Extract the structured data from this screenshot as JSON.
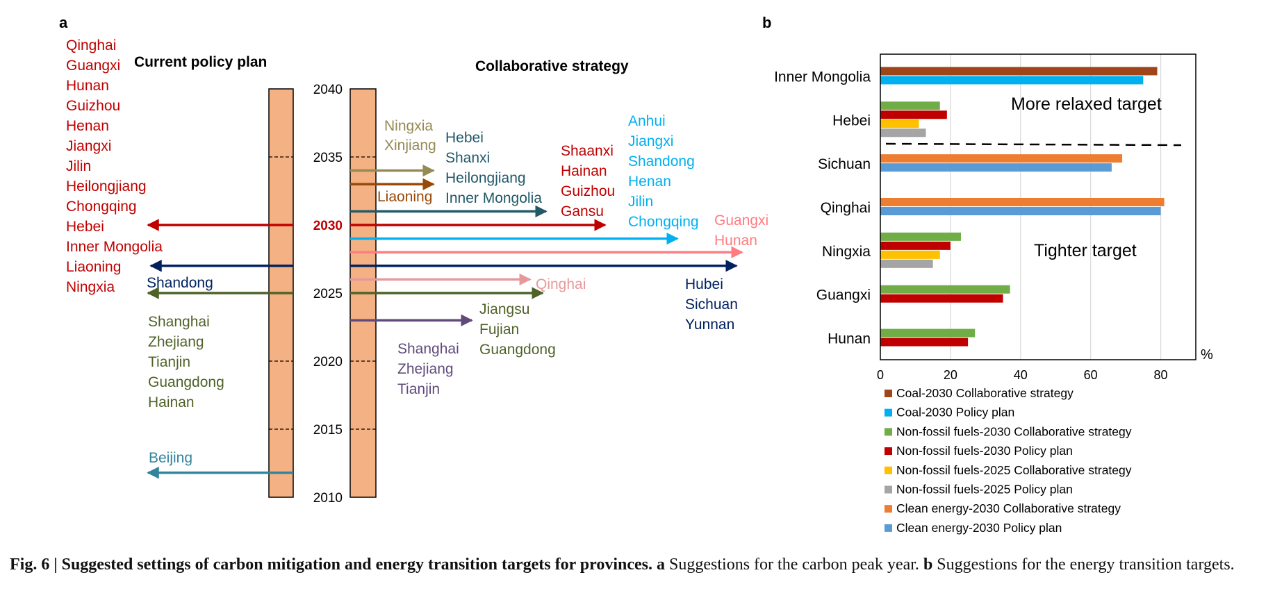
{
  "caption": {
    "title": "Fig. 6 | Suggested settings of carbon mitigation and energy transition targets for provinces.",
    "a_label": "a",
    "a_text": "Suggestions for the carbon peak year.",
    "b_label": "b",
    "b_text": "Suggestions for the energy transition targets."
  },
  "chart_data": [
    {
      "panel": "a",
      "type": "timeline",
      "title_left": "Current policy plan",
      "title_right": "Collaborative strategy",
      "year_ticks": [
        "2040",
        "2035",
        "2030",
        "2025",
        "2020",
        "2015",
        "2010"
      ],
      "highlight_year": "2030",
      "year_range": [
        2010,
        2040
      ],
      "colors": {
        "bar_fill": "#f4b183",
        "highlight": "#c00000",
        "red": "#c00000",
        "navy": "#002060",
        "olive": "#4f6228",
        "teal": "#31849b",
        "khaki": "#948a54",
        "brown": "#984807",
        "dteal": "#215968",
        "blue": "#00b0f0",
        "salmon": "#ff7c80",
        "pink": "#e6999b",
        "purple": "#604a7b"
      },
      "current_policy": [
        {
          "year": 2030,
          "color": "red",
          "provinces": [
            "Qinghai",
            "Guangxi",
            "Hunan",
            "Guizhou",
            "Henan",
            "Jiangxi",
            "Jilin",
            "Heilongjiang",
            "Chongqing",
            "Hebei",
            "Inner Mongolia",
            "Liaoning",
            "Ningxia"
          ]
        },
        {
          "year": 2027,
          "color": "navy",
          "provinces": [
            "Shandong"
          ]
        },
        {
          "year": 2025,
          "color": "olive",
          "provinces": [
            "Shanghai",
            "Zhejiang",
            "Tianjin",
            "Guangdong",
            "Hainan"
          ]
        },
        {
          "year": 2011.8,
          "color": "teal",
          "provinces": [
            "Beijing"
          ]
        }
      ],
      "collaborative": [
        {
          "year": 2034,
          "color": "khaki",
          "provinces": [
            "Ningxia",
            "Xinjiang"
          ]
        },
        {
          "year": 2033,
          "color": "brown",
          "provinces": [
            "Liaoning"
          ]
        },
        {
          "year": 2031,
          "color": "dteal",
          "provinces": [
            "Hebei",
            "Shanxi",
            "Heilongjiang",
            "Inner Mongolia"
          ]
        },
        {
          "year": 2030,
          "color": "red",
          "provinces": [
            "Shaanxi",
            "Hainan",
            "Guizhou",
            "Gansu"
          ]
        },
        {
          "year": 2029,
          "color": "blue",
          "provinces": [
            "Anhui",
            "Jiangxi",
            "Shandong",
            "Henan",
            "Jilin",
            "Chongqing"
          ]
        },
        {
          "year": 2028,
          "color": "salmon",
          "provinces": [
            "Guangxi",
            "Hunan"
          ]
        },
        {
          "year": 2027,
          "color": "navy",
          "provinces": [
            "Hubei",
            "Sichuan",
            "Yunnan"
          ]
        },
        {
          "year": 2026,
          "color": "pink",
          "provinces": [
            "Qinghai"
          ]
        },
        {
          "year": 2025,
          "color": "olive",
          "provinces": [
            "Jiangsu",
            "Fujian",
            "Guangdong"
          ]
        },
        {
          "year": 2023,
          "color": "purple",
          "provinces": [
            "Shanghai",
            "Zhejiang",
            "Tianjin"
          ]
        }
      ]
    },
    {
      "panel": "b",
      "type": "bar",
      "orientation": "horizontal",
      "categories": [
        "Inner Mongolia",
        "Hebei",
        "Sichuan",
        "Qinghai",
        "Ningxia",
        "Guangxi",
        "Hunan"
      ],
      "xlim": [
        0,
        90
      ],
      "xticks": [
        "0",
        "20",
        "40",
        "60",
        "80"
      ],
      "xunit": "%",
      "grid": true,
      "annotations": {
        "upper": "More relaxed target",
        "lower": "Tighter target"
      },
      "series": [
        {
          "name": "Coal-2030 Collaborative strategy",
          "color": "#a0441a",
          "values": [
            79,
            null,
            null,
            null,
            null,
            null,
            null
          ]
        },
        {
          "name": "Coal-2030 Policy plan",
          "color": "#00b0f0",
          "values": [
            75,
            null,
            null,
            null,
            null,
            null,
            null
          ]
        },
        {
          "name": "Non-fossil fuels-2030 Collaborative strategy",
          "color": "#70ad47",
          "values": [
            null,
            17,
            null,
            null,
            23,
            37,
            27
          ]
        },
        {
          "name": "Non-fossil fuels-2030 Policy plan",
          "color": "#c00000",
          "values": [
            null,
            19,
            null,
            null,
            20,
            35,
            25
          ]
        },
        {
          "name": "Non-fossil fuels-2025 Collaborative strategy",
          "color": "#ffc000",
          "values": [
            null,
            11,
            null,
            null,
            17,
            null,
            null
          ]
        },
        {
          "name": "Non-fossil fuels-2025 Policy plan",
          "color": "#a5a5a5",
          "values": [
            null,
            13,
            null,
            null,
            15,
            null,
            null
          ]
        },
        {
          "name": "Clean energy-2030 Collaborative strategy",
          "color": "#ed7d31",
          "values": [
            null,
            null,
            69,
            81,
            null,
            null,
            null
          ]
        },
        {
          "name": "Clean energy-2030 Policy plan",
          "color": "#5b9bd5",
          "values": [
            null,
            null,
            66,
            80,
            null,
            null,
            null
          ]
        }
      ]
    }
  ]
}
